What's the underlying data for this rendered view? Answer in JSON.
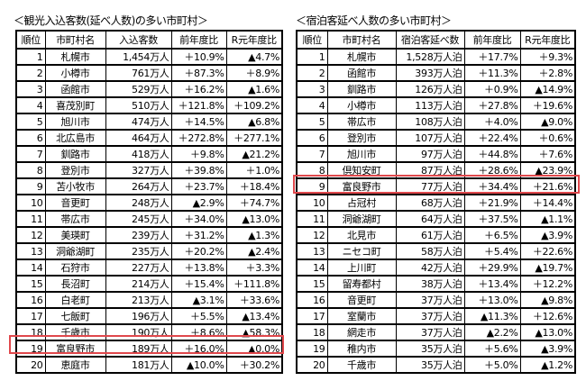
{
  "left": {
    "title": "＜観光入込客数(延べ人数)の多い市町村＞",
    "headers": [
      "順位",
      "市町村名",
      "入込客数",
      "前年度比",
      "R元年度比"
    ],
    "rows": [
      [
        "1",
        "札幌市",
        "1,454万人",
        "＋10.9%",
        "▲4.7%"
      ],
      [
        "2",
        "小樽市",
        "761万人",
        "＋87.3%",
        "＋8.9%"
      ],
      [
        "3",
        "函館市",
        "529万人",
        "＋16.2%",
        "▲1.6%"
      ],
      [
        "4",
        "喜茂別町",
        "510万人",
        "＋121.8%",
        "＋109.2%"
      ],
      [
        "5",
        "旭川市",
        "474万人",
        "＋14.5%",
        "▲6.8%"
      ],
      [
        "6",
        "北広島市",
        "464万人",
        "＋272.8%",
        "＋277.1%"
      ],
      [
        "7",
        "釧路市",
        "418万人",
        "＋9.8%",
        "▲21.2%"
      ],
      [
        "8",
        "登別市",
        "327万人",
        "＋39.8%",
        "＋1.0%"
      ],
      [
        "9",
        "苫小牧市",
        "264万人",
        "＋23.7%",
        "＋18.4%"
      ],
      [
        "10",
        "音更町",
        "248万人",
        "▲2.9%",
        "＋74.7%"
      ],
      [
        "11",
        "帯広市",
        "245万人",
        "＋34.0%",
        "▲13.0%"
      ],
      [
        "12",
        "美瑛町",
        "239万人",
        "＋31.2%",
        "▲1.3%"
      ],
      [
        "13",
        "洞爺湖町",
        "235万人",
        "＋20.2%",
        "▲2.4%"
      ],
      [
        "14",
        "石狩市",
        "227万人",
        "＋13.8%",
        "＋3.3%"
      ],
      [
        "15",
        "長沼町",
        "214万人",
        "＋15.4%",
        "＋111.8%"
      ],
      [
        "16",
        "白老町",
        "213万人",
        "▲3.1%",
        "＋33.6%"
      ],
      [
        "17",
        "七飯町",
        "196万人",
        "＋5.5%",
        "▲13.4%"
      ],
      [
        "18",
        "千歳市",
        "190万人",
        "＋8.6%",
        "▲58.3%"
      ],
      [
        "19",
        "富良野市",
        "189万人",
        "＋16.0%",
        "▲0.0%"
      ],
      [
        "20",
        "恵庭市",
        "181万人",
        "▲10.0%",
        "＋30.2%"
      ]
    ],
    "highlight_rank": "19"
  },
  "right": {
    "title": "＜宿泊客延べ人数の多い市町村＞",
    "headers": [
      "順位",
      "市町村名",
      "宿泊客延べ数",
      "前年度比",
      "R元年度比"
    ],
    "rows": [
      [
        "1",
        "札幌市",
        "1,528万人泊",
        "＋17.7%",
        "＋9.3%"
      ],
      [
        "2",
        "函館市",
        "393万人泊",
        "＋11.3%",
        "＋2.8%"
      ],
      [
        "3",
        "釧路市",
        "126万人泊",
        "＋0.9%",
        "▲14.9%"
      ],
      [
        "4",
        "小樽市",
        "113万人泊",
        "＋27.8%",
        "＋19.6%"
      ],
      [
        "5",
        "帯広市",
        "108万人泊",
        "＋4.0%",
        "▲9.0%"
      ],
      [
        "6",
        "登別市",
        "107万人泊",
        "＋22.4%",
        "＋0.6%"
      ],
      [
        "7",
        "旭川市",
        "97万人泊",
        "＋44.8%",
        "＋7.6%"
      ],
      [
        "8",
        "倶知安町",
        "87万人泊",
        "＋28.6%",
        "▲23.9%"
      ],
      [
        "9",
        "富良野市",
        "77万人泊",
        "＋34.4%",
        "＋21.6%"
      ],
      [
        "10",
        "占冠村",
        "68万人泊",
        "＋21.9%",
        "＋14.4%"
      ],
      [
        "11",
        "洞爺湖町",
        "64万人泊",
        "＋37.5%",
        "▲1.1%"
      ],
      [
        "12",
        "北見市",
        "61万人泊",
        "＋6.5%",
        "▲3.9%"
      ],
      [
        "13",
        "ニセコ町",
        "58万人泊",
        "＋5.4%",
        "＋22.6%"
      ],
      [
        "14",
        "上川町",
        "42万人泊",
        "＋29.9%",
        "▲19.7%"
      ],
      [
        "15",
        "留寿都村",
        "38万人泊",
        "＋13.4%",
        "＋12.2%"
      ],
      [
        "16",
        "音更町",
        "37万人泊",
        "＋13.0%",
        "▲9.8%"
      ],
      [
        "17",
        "室蘭市",
        "37万人泊",
        "▲11.3%",
        "＋12.6%"
      ],
      [
        "18",
        "網走市",
        "37万人泊",
        "▲2.2%",
        "▲13.0%"
      ],
      [
        "19",
        "稚内市",
        "35万人泊",
        "＋5.6%",
        "▲3.9%"
      ],
      [
        "20",
        "千歳市",
        "35万人泊",
        "＋5.0%",
        "▲1.2%"
      ]
    ],
    "highlight_rank": "9"
  },
  "highlight_color": "#e0484c"
}
